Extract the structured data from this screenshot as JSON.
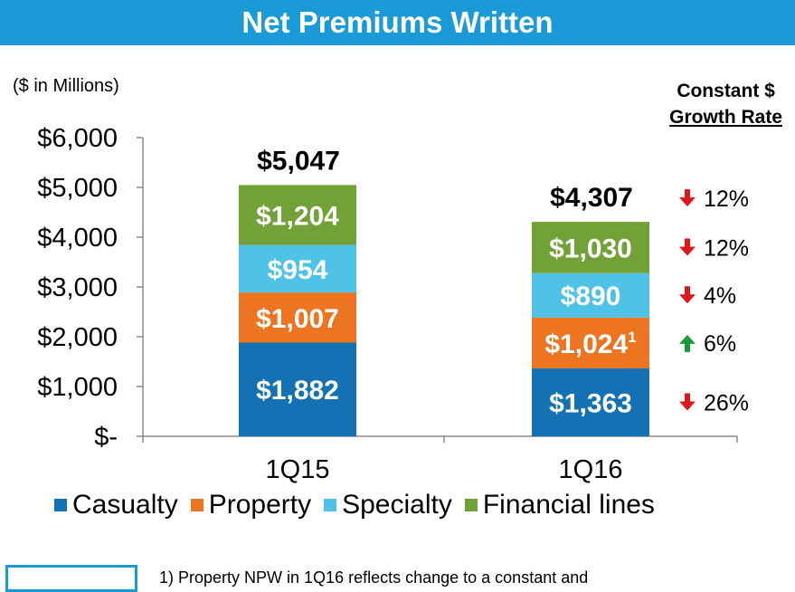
{
  "header": {
    "title": "Net Premiums Written"
  },
  "units_label": "($ in Millions)",
  "growth_header": {
    "line1": "Constant $",
    "line2": "Growth Rate"
  },
  "footnote": {
    "text": "1) Property NPW in 1Q16 reflects change to a constant and"
  },
  "chart_data": {
    "type": "bar",
    "stacked": true,
    "categories": [
      "1Q15",
      "1Q16"
    ],
    "ylim": [
      0,
      6000
    ],
    "yticks": [
      {
        "value": 0,
        "label": "$-"
      },
      {
        "value": 1000,
        "label": "$1,000"
      },
      {
        "value": 2000,
        "label": "$2,000"
      },
      {
        "value": 3000,
        "label": "$3,000"
      },
      {
        "value": 4000,
        "label": "$4,000"
      },
      {
        "value": 5000,
        "label": "$5,000"
      },
      {
        "value": 6000,
        "label": "$6,000"
      }
    ],
    "series": [
      {
        "name": "Casualty",
        "color": "#1471b3",
        "values": [
          1882,
          1363
        ],
        "labels": [
          "$1,882",
          "$1,363"
        ]
      },
      {
        "name": "Property",
        "color": "#ed7522",
        "values": [
          1007,
          1024
        ],
        "labels": [
          "$1,007",
          "$1,024"
        ],
        "superscript": [
          "",
          "1"
        ]
      },
      {
        "name": "Specialty",
        "color": "#4fc3e7",
        "values": [
          954,
          890
        ],
        "labels": [
          "$954",
          "$890"
        ]
      },
      {
        "name": "Financial lines",
        "color": "#72a137",
        "values": [
          1204,
          1030
        ],
        "labels": [
          "$1,204",
          "$1,030"
        ]
      }
    ],
    "totals": [
      {
        "value": 5047,
        "label": "$5,047"
      },
      {
        "value": 4307,
        "label": "$4,307"
      }
    ],
    "growth_rates": [
      {
        "series": "Financial lines",
        "direction": "down",
        "label": "12%",
        "row": "total"
      },
      {
        "series": "Financial lines",
        "direction": "down",
        "label": "12%"
      },
      {
        "series": "Specialty",
        "direction": "down",
        "label": "4%"
      },
      {
        "series": "Property",
        "direction": "up",
        "label": "6%"
      },
      {
        "series": "Casualty",
        "direction": "down",
        "label": "26%"
      }
    ],
    "colors": {
      "up": "#1a9a3a",
      "down": "#e0161b"
    }
  }
}
